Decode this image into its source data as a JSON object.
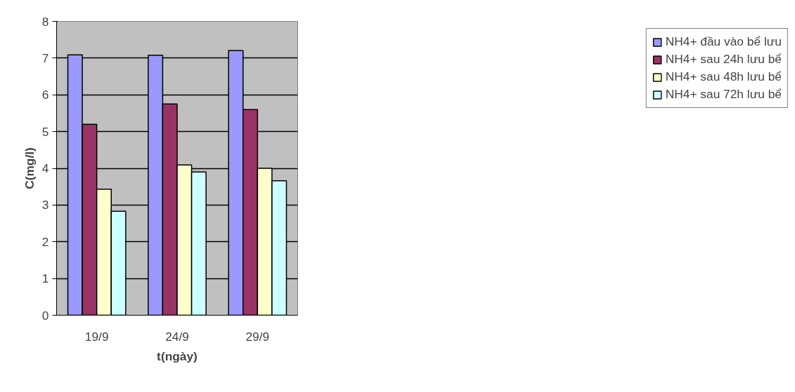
{
  "chart_data": {
    "type": "bar",
    "xlabel": "t(ngày)",
    "ylabel": "C(mg/l)",
    "categories": [
      "19/9",
      "24/9",
      "29/9"
    ],
    "series": [
      {
        "name": "NH4+ đầu vào bể lưu",
        "color": "#9999ff",
        "values": [
          7.09,
          7.08,
          7.21
        ]
      },
      {
        "name": "NH4+ sau 24h lưu bể",
        "color": "#993366",
        "values": [
          5.2,
          5.75,
          5.6
        ]
      },
      {
        "name": "NH4+ sau 48h lưu bể",
        "color": "#ffffcc",
        "values": [
          3.43,
          4.09,
          4.0
        ]
      },
      {
        "name": "NH4+ sau 72h lưu bể",
        "color": "#ccffff",
        "values": [
          2.83,
          3.9,
          3.66
        ]
      }
    ],
    "ylim": [
      0,
      8
    ],
    "yticks": [
      0,
      1,
      2,
      3,
      4,
      5,
      6,
      7,
      8
    ],
    "grid": "y",
    "legend": "right"
  }
}
